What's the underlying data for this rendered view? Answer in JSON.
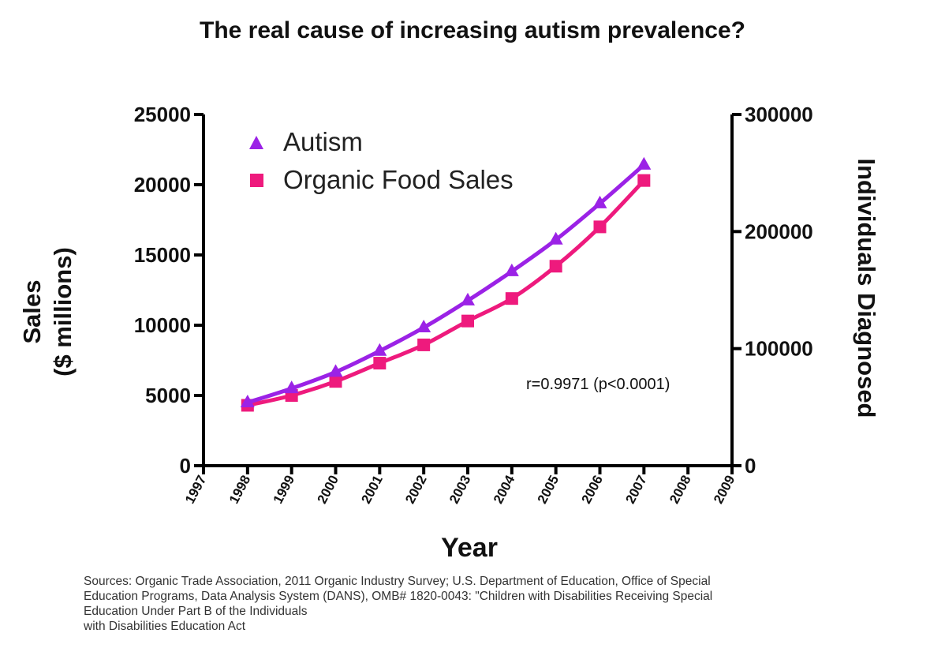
{
  "chart_data": {
    "type": "line",
    "title": "The real cause of increasing autism prevalence?",
    "xlabel": "Year",
    "ylabel_left_line1": "Sales",
    "ylabel_left_line2": "($ millions)",
    "ylabel_right": "Individuals Diagnosed",
    "x_ticks": [
      "1997",
      "1998",
      "1999",
      "2000",
      "2001",
      "2002",
      "2003",
      "2004",
      "2005",
      "2006",
      "2007",
      "2008",
      "2009"
    ],
    "x": [
      1998,
      1999,
      2000,
      2001,
      2002,
      2003,
      2004,
      2005,
      2006,
      2007
    ],
    "xlim": [
      1997,
      2009
    ],
    "ylim_left": [
      0,
      25000
    ],
    "ylim_right": [
      0,
      300000
    ],
    "y_ticks_left": [
      0,
      5000,
      10000,
      15000,
      20000,
      25000
    ],
    "y_ticks_left_labels": [
      "0",
      "5000",
      "10000",
      "15000",
      "20000",
      "25000"
    ],
    "y_ticks_right": [
      0,
      100000,
      200000,
      300000
    ],
    "y_ticks_right_labels": [
      "0",
      "100000",
      "200000",
      "300000"
    ],
    "series": [
      {
        "name": "Autism",
        "axis": "right",
        "marker": "triangle",
        "color": "#9b22e6",
        "values": [
          54000,
          66000,
          80000,
          98000,
          118000,
          141000,
          166000,
          193000,
          224000,
          257000
        ]
      },
      {
        "name": "Organic Food Sales",
        "axis": "left",
        "marker": "square",
        "color": "#ee1a7d",
        "values": [
          4300,
          5000,
          6000,
          7300,
          8600,
          10300,
          11900,
          14200,
          17000,
          20300
        ]
      }
    ],
    "annotation": "r=0.9971 (p<0.0001)",
    "legend_location": "top-left"
  },
  "legend": {
    "autism": "Autism",
    "organic": "Organic Food Sales"
  },
  "sources": {
    "line1": "Sources: Organic Trade Association,  2011 Organic Industry Survey; U.S. Department of Education, Office of Special",
    "line2": "Education Programs, Data Analysis System (DANS), OMB# 1820-0043: \"Children with Disabilities Receiving Special",
    "line3": "Education Under Part B of the Individuals",
    "line4": "with Disabilities Education Act"
  }
}
